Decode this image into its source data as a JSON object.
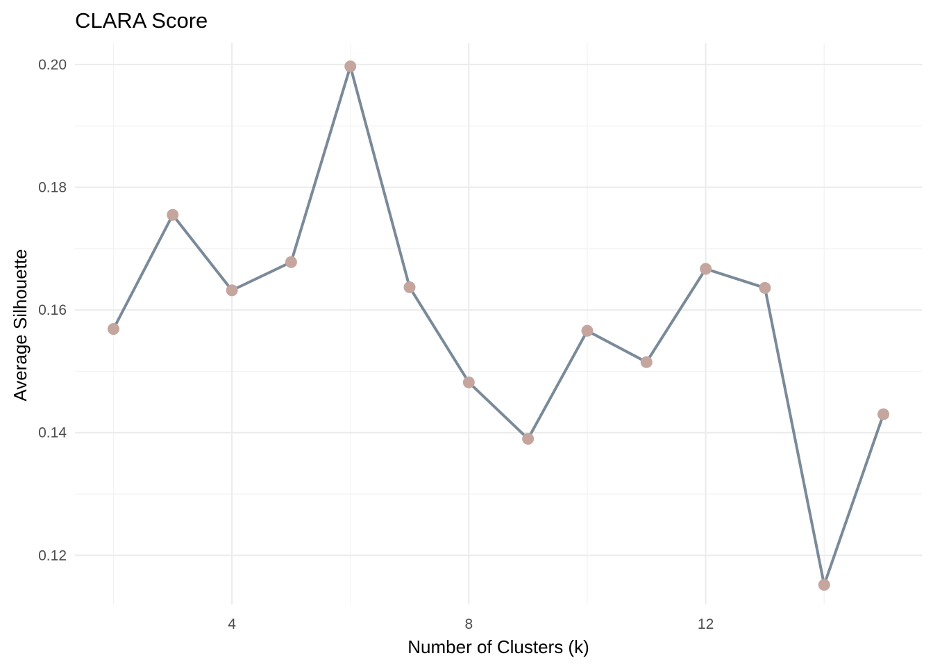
{
  "chart_data": {
    "type": "line",
    "title": "CLARA Score",
    "xlabel": "Number of Clusters (k)",
    "ylabel": "Average Silhouette",
    "x": [
      2,
      3,
      4,
      5,
      6,
      7,
      8,
      9,
      10,
      11,
      12,
      13,
      14,
      15
    ],
    "series": [
      {
        "values": [
          0.1569,
          0.1755,
          0.1632,
          0.1678,
          0.1997,
          0.1637,
          0.1482,
          0.139,
          0.1566,
          0.1515,
          0.1667,
          0.1636,
          0.1152,
          0.143
        ],
        "line_color": "#7a8a99",
        "point_color": "#c4a69f"
      }
    ],
    "xlim": [
      1.35,
      15.65
    ],
    "ylim": [
      0.112,
      0.2035
    ],
    "x_ticks": [
      4,
      8,
      12
    ],
    "x_tick_labels": [
      "4",
      "8",
      "12"
    ],
    "x_minor": [
      2,
      6,
      10,
      14
    ],
    "y_ticks": [
      0.12,
      0.14,
      0.16,
      0.18,
      0.2
    ],
    "y_tick_labels": [
      "0.12",
      "0.14",
      "0.16",
      "0.18",
      "0.20"
    ],
    "y_minor": [
      0.13,
      0.15,
      0.17,
      0.19
    ],
    "grid": true,
    "legend": "none"
  }
}
